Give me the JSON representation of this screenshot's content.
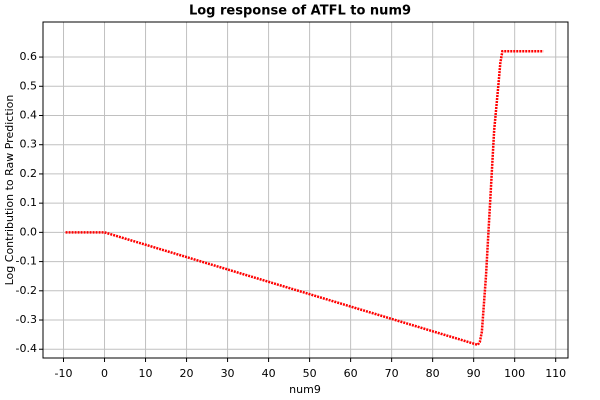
{
  "chart_data": {
    "type": "line",
    "title": "Log response of ATFL to num9",
    "x_label": "num9",
    "y_label": "Log Contribution to Raw Prediction",
    "x": [
      -9.5,
      0,
      91,
      91.5,
      92,
      93,
      94,
      95,
      96,
      96.5,
      97,
      107
    ],
    "series": [
      {
        "name": "num9",
        "color": "#ff0000",
        "values": [
          0,
          0,
          -0.385,
          -0.375,
          -0.34,
          -0.15,
          0.1,
          0.35,
          0.5,
          0.58,
          0.62,
          0.62
        ]
      }
    ],
    "xlim": [
      -15,
      113
    ],
    "ylim": [
      -0.43,
      0.72
    ],
    "xticks": [
      -10,
      0,
      10,
      20,
      30,
      40,
      50,
      60,
      70,
      80,
      90,
      100,
      110
    ],
    "yticks": [
      0.6,
      0.5,
      0.4,
      0.3,
      0.2,
      0.1,
      {
        "value": 0,
        "label": "0.0"
      },
      -0.1,
      -0.2,
      -0.3,
      -0.4
    ],
    "grid": true
  }
}
